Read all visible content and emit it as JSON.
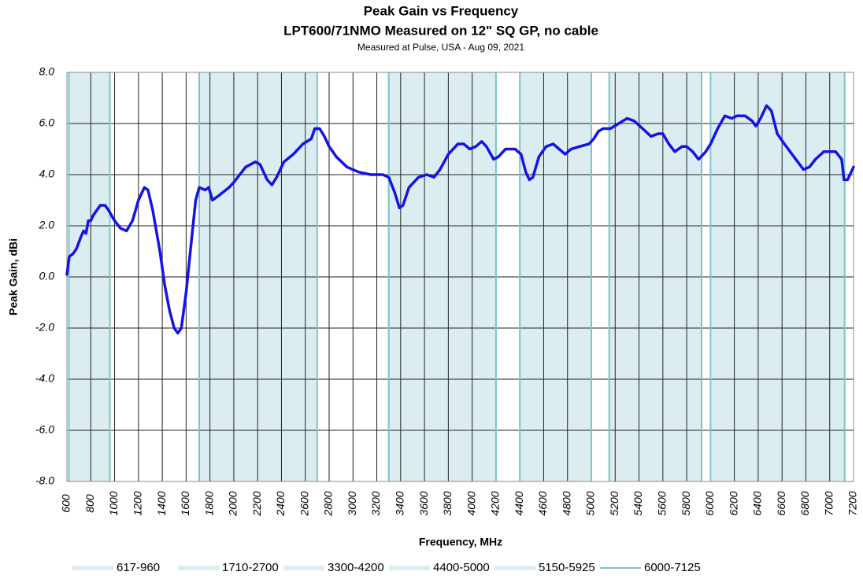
{
  "chart_data": {
    "type": "line",
    "title": "Peak Gain vs Frequency",
    "subtitle": "LPT600/71NMO Measured on 12\" SQ GP, no cable",
    "note": "Measured at Pulse, USA - Aug 09, 2021",
    "x_label": "Frequency, MHz",
    "y_label": "Peak Gain, dBi",
    "xlim": [
      600,
      7200
    ],
    "ylim": [
      -8,
      8
    ],
    "xticks": [
      600,
      800,
      1000,
      1200,
      1400,
      1600,
      1800,
      2000,
      2200,
      2400,
      2600,
      2800,
      3000,
      3200,
      3400,
      3600,
      3800,
      4000,
      4200,
      4400,
      4600,
      4800,
      5000,
      5200,
      5400,
      5600,
      5800,
      6000,
      6200,
      6400,
      6600,
      6800,
      7000,
      7200
    ],
    "yticks": [
      {
        "value": 8,
        "label": "8.0"
      },
      {
        "value": 6,
        "label": "6.0"
      },
      {
        "value": 4,
        "label": "4.0"
      },
      {
        "value": 2,
        "label": "2.0"
      },
      {
        "value": 0,
        "label": "0.0"
      },
      {
        "value": -2,
        "label": "-2.0"
      },
      {
        "value": -4,
        "label": "-4.0"
      },
      {
        "value": -6,
        "label": "-6.0"
      },
      {
        "value": -8,
        "label": "-8.0"
      }
    ],
    "grid": true,
    "legend": "bottom",
    "band_color": "#dcedf2",
    "band_edge_color": "#7cc3ca",
    "bands": [
      {
        "name": "617-960",
        "from": 617,
        "to": 960
      },
      {
        "name": "1710-2700",
        "from": 1710,
        "to": 2700
      },
      {
        "name": "3300-4200",
        "from": 3300,
        "to": 4200
      },
      {
        "name": "4400-5000",
        "from": 4400,
        "to": 5000
      },
      {
        "name": "5150-5925",
        "from": 5150,
        "to": 5925
      },
      {
        "name": "6000-7125",
        "from": 6000,
        "to": 7125
      }
    ],
    "series": [
      {
        "color": "#1414e6",
        "x": [
          600,
          620,
          650,
          680,
          720,
          740,
          760,
          780,
          800,
          820,
          850,
          880,
          920,
          950,
          1000,
          1050,
          1100,
          1150,
          1200,
          1250,
          1280,
          1320,
          1380,
          1420,
          1460,
          1500,
          1530,
          1560,
          1600,
          1640,
          1680,
          1710,
          1760,
          1790,
          1820,
          1880,
          1960,
          2000,
          2100,
          2180,
          2220,
          2280,
          2320,
          2360,
          2420,
          2500,
          2580,
          2650,
          2680,
          2720,
          2760,
          2800,
          2860,
          2950,
          3050,
          3150,
          3250,
          3300,
          3350,
          3390,
          3420,
          3470,
          3550,
          3620,
          3680,
          3730,
          3800,
          3880,
          3930,
          3980,
          4030,
          4080,
          4120,
          4180,
          4220,
          4280,
          4360,
          4410,
          4450,
          4480,
          4510,
          4560,
          4620,
          4680,
          4730,
          4780,
          4830,
          4900,
          4980,
          5020,
          5060,
          5100,
          5160,
          5230,
          5300,
          5360,
          5430,
          5500,
          5560,
          5600,
          5650,
          5700,
          5760,
          5800,
          5850,
          5900,
          5960,
          6000,
          6060,
          6120,
          6180,
          6220,
          6290,
          6350,
          6380,
          6420,
          6470,
          6510,
          6560,
          6620,
          6700,
          6780,
          6830,
          6880,
          6950,
          7050,
          7100,
          7120,
          7150,
          7200
        ],
        "values": [
          0.1,
          0.8,
          0.9,
          1.1,
          1.6,
          1.8,
          1.7,
          2.2,
          2.2,
          2.4,
          2.6,
          2.8,
          2.8,
          2.6,
          2.2,
          1.9,
          1.8,
          2.2,
          3.0,
          3.5,
          3.4,
          2.6,
          1.0,
          -0.3,
          -1.3,
          -2.0,
          -2.2,
          -2.0,
          -0.6,
          1.2,
          3.0,
          3.5,
          3.4,
          3.5,
          3.0,
          3.2,
          3.5,
          3.7,
          4.3,
          4.5,
          4.4,
          3.8,
          3.6,
          3.9,
          4.5,
          4.8,
          5.2,
          5.4,
          5.8,
          5.8,
          5.5,
          5.1,
          4.7,
          4.3,
          4.1,
          4.0,
          4.0,
          3.9,
          3.3,
          2.7,
          2.8,
          3.5,
          3.9,
          4.0,
          3.9,
          4.2,
          4.8,
          5.2,
          5.2,
          5.0,
          5.1,
          5.3,
          5.1,
          4.6,
          4.7,
          5.0,
          5.0,
          4.8,
          4.1,
          3.8,
          3.9,
          4.7,
          5.1,
          5.2,
          5.0,
          4.8,
          5.0,
          5.1,
          5.2,
          5.4,
          5.7,
          5.8,
          5.8,
          6.0,
          6.2,
          6.1,
          5.8,
          5.5,
          5.6,
          5.6,
          5.2,
          4.9,
          5.1,
          5.1,
          4.9,
          4.6,
          4.9,
          5.2,
          5.8,
          6.3,
          6.2,
          6.3,
          6.3,
          6.1,
          5.9,
          6.2,
          6.7,
          6.5,
          5.6,
          5.2,
          4.7,
          4.2,
          4.3,
          4.6,
          4.9,
          4.9,
          4.6,
          3.8,
          3.8,
          4.3
        ]
      }
    ]
  }
}
